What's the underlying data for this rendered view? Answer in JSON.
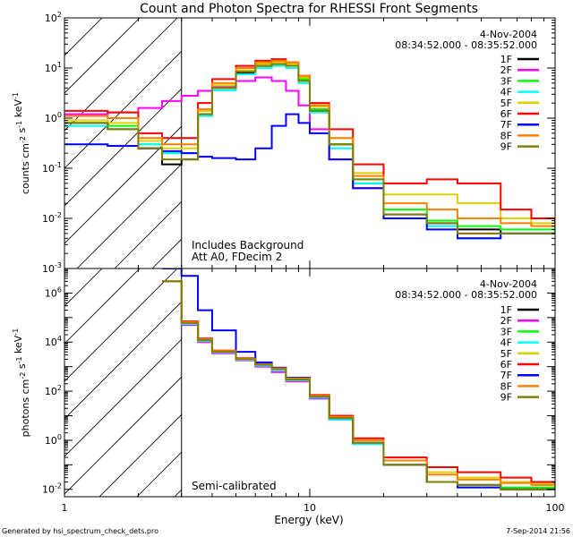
{
  "title": "Count and Photon Spectra for RHESSI Front Segments",
  "footer": {
    "left": "Generated by hsi_spectrum_check_dets.pro",
    "right": "7-Sep-2014 21:56"
  },
  "chart_data": [
    {
      "type": "line",
      "title": "Count and Photon Spectra for RHESSI Front Segments",
      "ylabel": "counts cm^-2 s^-1 keV^-1",
      "xlabel": "Energy (keV)",
      "xscale": "log",
      "yscale": "log",
      "xlim": [
        1,
        100
      ],
      "ylim": [
        0.001,
        100
      ],
      "date": "4-Nov-2004",
      "time_range": "08:34:52.000 - 08:35:52.000",
      "annotations": [
        "Includes Background",
        "Att A0, FDecim 2"
      ],
      "excluded_region_upper_keV": 3,
      "series": [
        {
          "name": "1F",
          "color": "#000000",
          "x": [
            1,
            1.5,
            2,
            2.5,
            3,
            3.5,
            4,
            5,
            6,
            7,
            8,
            9,
            10,
            12,
            15,
            20,
            30,
            40,
            60,
            80,
            100
          ],
          "y": [
            0.8,
            0.6,
            0.25,
            0.12,
            0.15,
            1.2,
            4,
            8,
            11,
            13,
            12,
            6,
            1.5,
            0.3,
            0.05,
            0.012,
            0.008,
            0.006,
            0.005,
            0.005,
            0.005
          ]
        },
        {
          "name": "2F",
          "color": "#ff00ff",
          "x": [
            1,
            1.5,
            2,
            2.5,
            3,
            3.5,
            4,
            5,
            6,
            7,
            8,
            9,
            10,
            12,
            15,
            20,
            30,
            40,
            60,
            80,
            100
          ],
          "y": [
            1.2,
            1.3,
            1.6,
            2.2,
            2.8,
            3.5,
            4.2,
            5.5,
            6.5,
            5.5,
            3.5,
            1.8,
            0.6,
            0.15,
            0.04,
            0.01,
            0.007,
            0.005,
            0.005,
            0.005,
            0.005
          ]
        },
        {
          "name": "3F",
          "color": "#00ff00",
          "x": [
            1,
            1.5,
            2,
            2.5,
            3,
            3.5,
            4,
            5,
            6,
            7,
            8,
            9,
            10,
            12,
            15,
            20,
            30,
            40,
            60,
            80,
            100
          ],
          "y": [
            0.9,
            0.7,
            0.3,
            0.2,
            0.2,
            1.4,
            4.5,
            9,
            12,
            13,
            12,
            6,
            1.5,
            0.3,
            0.06,
            0.015,
            0.009,
            0.007,
            0.006,
            0.006,
            0.005
          ]
        },
        {
          "name": "4F",
          "color": "#00ffff",
          "x": [
            1,
            1.5,
            2,
            2.5,
            3,
            3.5,
            4,
            5,
            6,
            7,
            8,
            9,
            10,
            12,
            15,
            20,
            30,
            40,
            60,
            80,
            100
          ],
          "y": [
            0.7,
            0.6,
            0.3,
            0.2,
            0.2,
            1.1,
            3.6,
            7.5,
            10,
            11,
            10,
            5,
            1.3,
            0.25,
            0.05,
            0.01,
            0.007,
            0.004,
            0.005,
            0.005,
            0.005
          ]
        },
        {
          "name": "5F",
          "color": "#e0d000",
          "x": [
            1,
            1.5,
            2,
            2.5,
            3,
            3.5,
            4,
            5,
            6,
            7,
            8,
            9,
            10,
            12,
            15,
            20,
            30,
            40,
            60,
            80,
            100
          ],
          "y": [
            0.9,
            0.8,
            0.35,
            0.25,
            0.25,
            1.4,
            4.5,
            9,
            12,
            13,
            12,
            6.5,
            1.7,
            0.4,
            0.08,
            0.03,
            0.03,
            0.02,
            0.01,
            0.008,
            0.007
          ]
        },
        {
          "name": "6F",
          "color": "#ff0000",
          "x": [
            1,
            1.5,
            2,
            2.5,
            3,
            3.5,
            4,
            5,
            6,
            7,
            8,
            9,
            10,
            12,
            15,
            20,
            30,
            40,
            60,
            80,
            100
          ],
          "y": [
            1.4,
            1.3,
            0.5,
            0.4,
            0.4,
            2,
            6,
            11,
            14,
            15,
            13,
            7,
            2,
            0.6,
            0.12,
            0.05,
            0.06,
            0.05,
            0.015,
            0.01,
            0.008
          ]
        },
        {
          "name": "7F",
          "color": "#0000ff",
          "x": [
            1,
            1.5,
            2,
            2.5,
            3,
            3.5,
            4,
            5,
            6,
            7,
            8,
            9,
            10,
            12,
            15,
            20,
            30,
            40,
            60,
            80,
            100
          ],
          "y": [
            0.3,
            0.28,
            0.25,
            0.22,
            0.2,
            0.17,
            0.16,
            0.15,
            0.25,
            0.7,
            1.2,
            0.8,
            0.5,
            0.15,
            0.04,
            0.01,
            0.006,
            0.004,
            0.005,
            0.005,
            0.005
          ]
        },
        {
          "name": "8F",
          "color": "#ff8000",
          "x": [
            1,
            1.5,
            2,
            2.5,
            3,
            3.5,
            4,
            5,
            6,
            7,
            8,
            9,
            10,
            12,
            15,
            20,
            30,
            40,
            60,
            80,
            100
          ],
          "y": [
            1.1,
            1.0,
            0.4,
            0.3,
            0.3,
            1.5,
            5,
            10,
            13,
            14,
            13,
            7,
            1.8,
            0.4,
            0.07,
            0.02,
            0.015,
            0.01,
            0.008,
            0.007,
            0.006
          ]
        },
        {
          "name": "9F",
          "color": "#808000",
          "x": [
            1,
            1.5,
            2,
            2.5,
            3,
            3.5,
            4,
            5,
            6,
            7,
            8,
            9,
            10,
            12,
            15,
            20,
            30,
            40,
            60,
            80,
            100
          ],
          "y": [
            0.8,
            0.6,
            0.25,
            0.15,
            0.15,
            1.2,
            4,
            8.5,
            11,
            12,
            11,
            5.5,
            1.4,
            0.3,
            0.06,
            0.012,
            0.008,
            0.005,
            0.005,
            0.005,
            0.005
          ]
        }
      ]
    },
    {
      "type": "line",
      "ylabel": "photons cm^-2 s^-1 keV^-1",
      "xlabel": "Energy (keV)",
      "xscale": "log",
      "yscale": "log",
      "xlim": [
        1,
        100
      ],
      "ylim": [
        0.005,
        10000000
      ],
      "date": "4-Nov-2004",
      "time_range": "08:34:52.000 - 08:35:52.000",
      "annotations": [
        "Semi-calibrated"
      ],
      "excluded_region_upper_keV": 3,
      "series": [
        {
          "name": "1F",
          "color": "#000000",
          "x": [
            2.5,
            3,
            3.5,
            4,
            5,
            6,
            7,
            8,
            10,
            12,
            15,
            20,
            30,
            40,
            60,
            80,
            100
          ],
          "y": [
            3000000,
            60000,
            12000,
            4000,
            2000,
            1200,
            800,
            300,
            60,
            8,
            0.8,
            0.1,
            0.02,
            0.015,
            0.01,
            0.01,
            0.01
          ]
        },
        {
          "name": "2F",
          "color": "#ff00ff",
          "x": [
            2.5,
            3,
            3.5,
            4,
            5,
            6,
            7,
            8,
            10,
            12,
            15,
            20,
            30,
            40,
            60,
            80,
            100
          ],
          "y": [
            3000000,
            50000,
            10000,
            3500,
            1800,
            1000,
            600,
            250,
            50,
            7,
            0.7,
            0.1,
            0.02,
            0.015,
            0.01,
            0.01,
            0.01
          ]
        },
        {
          "name": "3F",
          "color": "#00ff00",
          "x": [
            2.5,
            3,
            3.5,
            4,
            5,
            6,
            7,
            8,
            10,
            12,
            15,
            20,
            30,
            40,
            60,
            80,
            100
          ],
          "y": [
            3000000,
            60000,
            12000,
            4000,
            2000,
            1200,
            800,
            300,
            60,
            8,
            0.8,
            0.1,
            0.02,
            0.015,
            0.012,
            0.012,
            0.01
          ]
        },
        {
          "name": "4F",
          "color": "#00ffff",
          "x": [
            2.5,
            3,
            3.5,
            4,
            5,
            6,
            7,
            8,
            10,
            12,
            15,
            20,
            30,
            40,
            60,
            80,
            100
          ],
          "y": [
            3000000,
            55000,
            11000,
            3800,
            1900,
            1100,
            700,
            280,
            55,
            7,
            0.7,
            0.1,
            0.02,
            0.012,
            0.01,
            0.01,
            0.01
          ]
        },
        {
          "name": "5F",
          "color": "#e0d000",
          "x": [
            2.5,
            3,
            3.5,
            4,
            5,
            6,
            7,
            8,
            10,
            12,
            15,
            20,
            30,
            40,
            60,
            80,
            100
          ],
          "y": [
            3000000,
            70000,
            13000,
            4200,
            2100,
            1300,
            800,
            320,
            70,
            9,
            1,
            0.15,
            0.05,
            0.03,
            0.02,
            0.018,
            0.015
          ]
        },
        {
          "name": "6F",
          "color": "#ff0000",
          "x": [
            2.5,
            3,
            3.5,
            4,
            5,
            6,
            7,
            8,
            10,
            12,
            15,
            20,
            30,
            40,
            60,
            80,
            100
          ],
          "y": [
            3000000,
            70000,
            14000,
            4500,
            2200,
            1300,
            900,
            350,
            70,
            10,
            1.2,
            0.2,
            0.08,
            0.05,
            0.03,
            0.02,
            0.015
          ]
        },
        {
          "name": "7F",
          "color": "#0000ff",
          "x": [
            2.5,
            3,
            3.5,
            4,
            5,
            6,
            7,
            8,
            10,
            12,
            15,
            20,
            30,
            40,
            60,
            80,
            100
          ],
          "y": [
            10000000,
            5000000,
            200000,
            30000,
            4000,
            1500,
            900,
            350,
            60,
            8,
            0.8,
            0.1,
            0.02,
            0.012,
            0.01,
            0.01,
            0.01
          ]
        },
        {
          "name": "8F",
          "color": "#ff8000",
          "x": [
            2.5,
            3,
            3.5,
            4,
            5,
            6,
            7,
            8,
            10,
            12,
            15,
            20,
            30,
            40,
            60,
            80,
            100
          ],
          "y": [
            3000000,
            65000,
            13000,
            4300,
            2100,
            1250,
            850,
            330,
            65,
            9,
            1,
            0.15,
            0.04,
            0.025,
            0.018,
            0.015,
            0.012
          ]
        },
        {
          "name": "9F",
          "color": "#808000",
          "x": [
            2.5,
            3,
            3.5,
            4,
            5,
            6,
            7,
            8,
            10,
            12,
            15,
            20,
            30,
            40,
            60,
            80,
            100
          ],
          "y": [
            3000000,
            60000,
            12000,
            4000,
            2000,
            1200,
            800,
            300,
            60,
            8,
            0.8,
            0.1,
            0.02,
            0.015,
            0.01,
            0.01,
            0.01
          ]
        }
      ]
    }
  ]
}
